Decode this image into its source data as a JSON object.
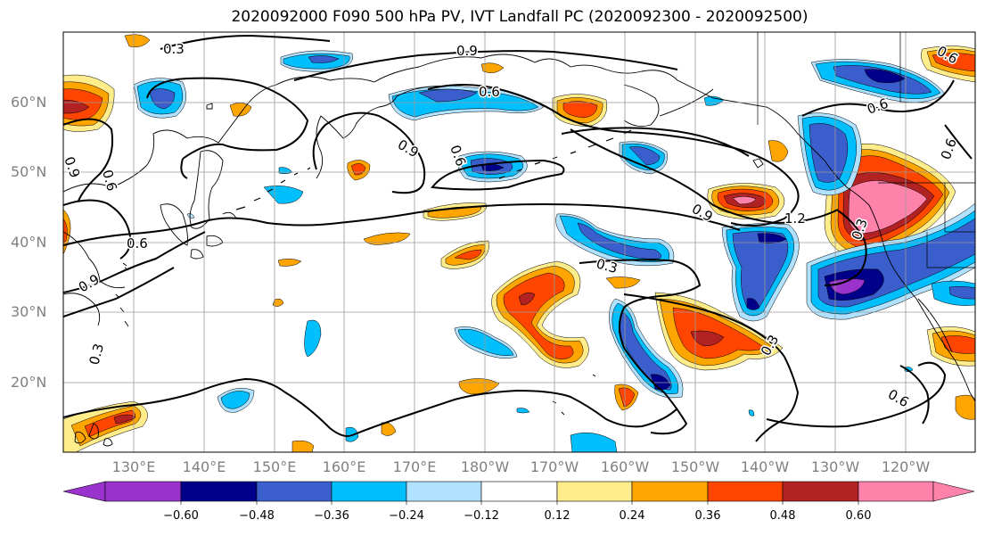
{
  "title": "2020092000 F090 500 hPa PV, IVT Landfall PC (2020092300 - 2020092500)",
  "lat_labels": [
    "60°N",
    "50°N",
    "40°N",
    "30°N",
    "20°N"
  ],
  "lon_labels": [
    "130°E",
    "140°E",
    "150°E",
    "160°E",
    "170°E",
    "180°W",
    "170°W",
    "160°W",
    "150°W",
    "140°W",
    "130°W",
    "120°W"
  ],
  "contour_labels": [
    "0.3",
    "0.9",
    "0.6",
    "0.9",
    "0.6",
    "0.9",
    "0.6",
    "0.6",
    "0.9",
    "1.2",
    "0.3",
    "0.3",
    "0.3",
    "0.6",
    "0.6",
    "0.9",
    "0.6",
    "0.3",
    "0.6"
  ],
  "colorbar": {
    "ticks": [
      "−0.60",
      "−0.48",
      "−0.36",
      "−0.24",
      "−0.12",
      "0.12",
      "0.24",
      "0.36",
      "0.48",
      "0.60"
    ],
    "colors": [
      "#9a32cd",
      "#00008b",
      "#3a5fcd",
      "#00bfff",
      "#b0e2ff",
      "#ffffff",
      "#ffec8b",
      "#ffa500",
      "#ff4500",
      "#b22222",
      "#ff82ab"
    ]
  }
}
